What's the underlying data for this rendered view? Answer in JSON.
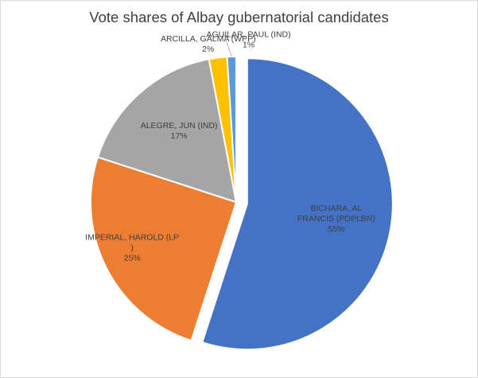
{
  "chart_data": {
    "type": "pie",
    "title": "Vote shares of Albay gubernatorial candidates",
    "slices": [
      {
        "label_lines": [
          "BICHARA, AL",
          "FRANCIS (PDPLBN)"
        ],
        "percent_label": "55%",
        "value": 55,
        "color": "#4472c4",
        "label_color": "#404040",
        "exploded": true
      },
      {
        "label_lines": [
          "IMPERIAL, HAROLD (LP",
          ")"
        ],
        "percent_label": "25%",
        "value": 25,
        "color": "#ed7d31",
        "label_color": "#404040",
        "exploded": false
      },
      {
        "label_lines": [
          "ALEGRE, JUN (IND)"
        ],
        "percent_label": "17%",
        "value": 17,
        "color": "#a5a5a5",
        "label_color": "#404040",
        "exploded": false
      },
      {
        "label_lines": [
          "ARCILLA, GALMA (WPP)"
        ],
        "percent_label": "2%",
        "value": 2,
        "color": "#ffc000",
        "label_color": "#404040",
        "exploded": false
      },
      {
        "label_lines": [
          "AGUILAR, PAUL (IND)"
        ],
        "percent_label": "1%",
        "value": 1,
        "color": "#5b9bd5",
        "label_color": "#404040",
        "exploded": false
      }
    ],
    "start_angle_deg": 0,
    "direction": "clockwise",
    "legend": "none"
  }
}
